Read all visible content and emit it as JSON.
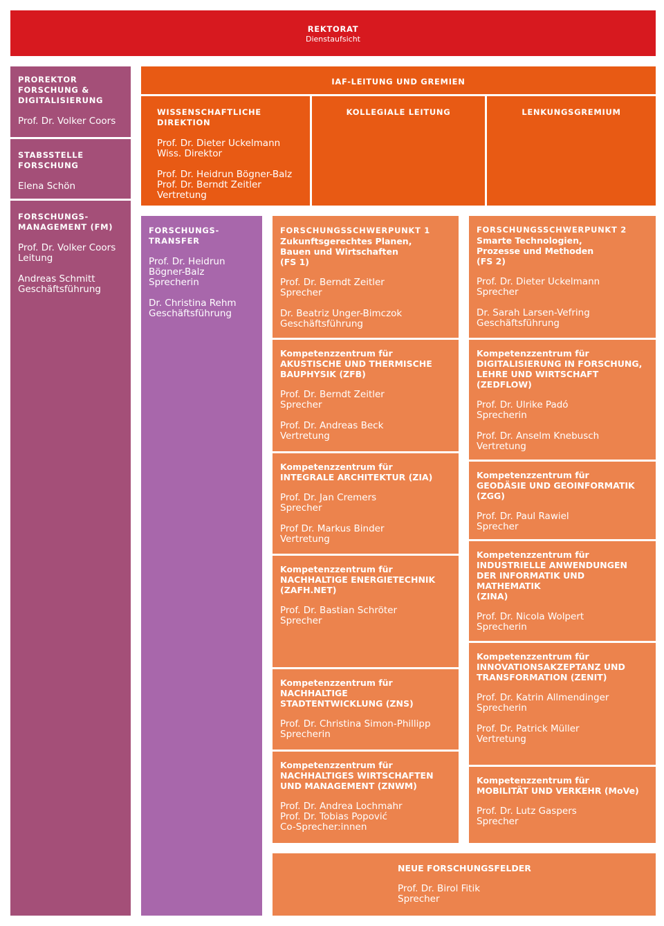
{
  "rektorat": {
    "title": "REKTORAT",
    "subtitle": "Dienstaufsicht"
  },
  "prorektor": {
    "title": "PROREKTOR\nFORSCHUNG &\nDIGITALISIERUNG",
    "person": "Prof. Dr. Volker Coors"
  },
  "stabsstelle": {
    "title": "STABSSTELLE\nFORSCHUNG",
    "person": "Elena Schön"
  },
  "fm": {
    "title": "FORSCHUNGS-\nMANAGEMENT (FM)",
    "p1": "Prof. Dr. Volker Coors",
    "r1": "Leitung",
    "p2": "Andreas Schmitt",
    "r2": "Geschäftsführung"
  },
  "iaf": {
    "header": "IAF-LEITUNG UND GREMIEN",
    "wd": {
      "title": "WISSENSCHAFTLICHE\nDIREKTION",
      "p1": "Prof. Dr. Dieter Uckelmann",
      "r1": "Wiss. Direktor",
      "p2": "Prof. Dr. Heidrun Bögner-Balz",
      "p3": "Prof. Dr. Berndt Zeitler",
      "r2": "Vertretung"
    },
    "kollegial": "KOLLEGIALE LEITUNG",
    "lenkung": "LENKUNGSGREMIUM"
  },
  "transfer": {
    "title": "FORSCHUNGS-\nTRANSFER",
    "p1": "Prof. Dr. Heidrun\nBögner-Balz",
    "r1": "Sprecherin",
    "p2": "Dr. Christina Rehm",
    "r2": "Geschäftsführung"
  },
  "fs1": {
    "label": "FORSCHUNGSSCHWERPUNKT 1",
    "name": "Zukunftsgerechtes Planen,\nBauen und Wirtschaften\n(FS 1)",
    "p1": "Prof. Dr. Berndt Zeitler",
    "r1": "Sprecher",
    "p2": "Dr. Beatriz Unger-Bimczok",
    "r2": "Geschäftsführung"
  },
  "fs2": {
    "label": "FORSCHUNGSSCHWERPUNKT 2",
    "name": "Smarte Technologien,\nProzesse und Methoden\n(FS 2)",
    "p1": "Prof. Dr. Dieter Uckelmann",
    "r1": "Sprecher",
    "p2": "Dr. Sarah Larsen-Vefring",
    "r2": "Geschäftsführung"
  },
  "kz_prefix": "Kompetenzzentrum für",
  "left_centers": [
    {
      "name": "AKUSTISCHE UND THERMISCHE\nBAUPHYSIK (ZFB)",
      "people": [
        {
          "name": "Prof. Dr. Berndt Zeitler",
          "role": "Sprecher"
        },
        {
          "name": "Prof. Dr. Andreas Beck",
          "role": "Vertretung"
        }
      ]
    },
    {
      "name": "INTEGRALE ARCHITEKTUR (ZIA)",
      "people": [
        {
          "name": "Prof. Dr. Jan Cremers",
          "role": "Sprecher"
        },
        {
          "name": "Prof Dr. Markus Binder",
          "role": "Vertretung"
        }
      ]
    },
    {
      "name": "NACHHALTIGE ENERGIETECHNIK\n(ZAFH.NET)",
      "people": [
        {
          "name": "Prof. Dr. Bastian Schröter",
          "role": "Sprecher"
        }
      ]
    },
    {
      "name": "NACHHALTIGE\nSTADTENTWICKLUNG (ZNS)",
      "people": [
        {
          "name": "Prof. Dr. Christina Simon-Phillipp",
          "role": "Sprecherin"
        }
      ]
    },
    {
      "name": "NACHHALTIGES WIRTSCHAFTEN\nUND MANAGEMENT (ZNWM)",
      "people": [
        {
          "name": "Prof. Dr. Andrea Lochmahr\nProf. Dr. Tobias Popović",
          "role": "Co-Sprecher:innen"
        }
      ]
    }
  ],
  "right_centers": [
    {
      "name": "DIGITALISIERUNG IN FORSCHUNG,\nLEHRE UND WIRTSCHAFT\n(ZEDFLOW)",
      "people": [
        {
          "name": "Prof. Dr. Ulrike Padó",
          "role": "Sprecherin"
        },
        {
          "name": "Prof. Dr. Anselm Knebusch",
          "role": "Vertretung"
        }
      ]
    },
    {
      "name": "GEODÄSIE UND GEOINFORMATIK\n(ZGG)",
      "people": [
        {
          "name": "Prof. Dr. Paul Rawiel",
          "role": "Sprecher"
        }
      ]
    },
    {
      "name": "INDUSTRIELLE ANWENDUNGEN\nDER INFORMATIK UND MATHEMATIK\n(ZINA)",
      "people": [
        {
          "name": "Prof. Dr. Nicola Wolpert",
          "role": "Sprecherin"
        }
      ]
    },
    {
      "name": "INNOVATIONSAKZEPTANZ UND\nTRANSFORMATION (ZENIT)",
      "people": [
        {
          "name": "Prof. Dr. Katrin Allmendinger",
          "role": "Sprecherin"
        },
        {
          "name": "Prof. Dr. Patrick Müller",
          "role": "Vertretung"
        }
      ]
    },
    {
      "name": "MOBILITÄT UND VERKEHR (MoVe)",
      "people": [
        {
          "name": "Prof. Dr. Lutz Gaspers",
          "role": "Sprecher"
        }
      ]
    }
  ],
  "neue": {
    "title": "NEUE FORSCHUNGSFELDER",
    "person": "Prof. Dr. Birol Fitik",
    "role": "Sprecher"
  },
  "colors": {
    "rektorat": "#d7191f",
    "prorektor": "#a44f78",
    "transfer": "#a867ab",
    "iaf": "#e85a14",
    "centers": "#ec834d"
  }
}
